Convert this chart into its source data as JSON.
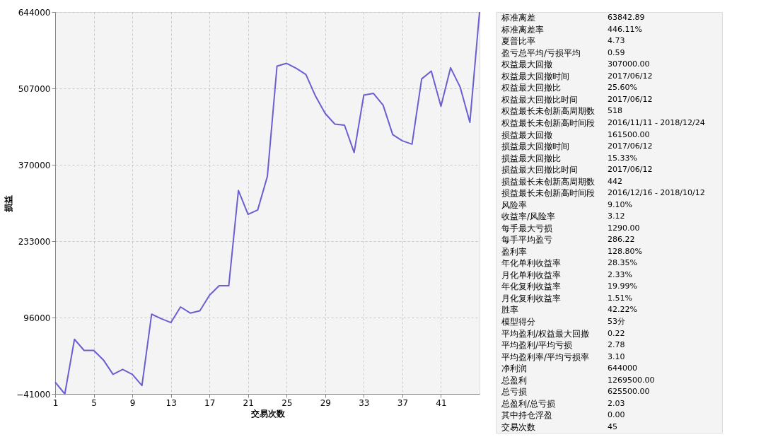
{
  "chart_data": [
    {
      "type": "line",
      "xlabel": "交易次数",
      "ylabel": "损益",
      "x": [
        1,
        2,
        3,
        4,
        5,
        6,
        7,
        8,
        9,
        10,
        11,
        12,
        13,
        14,
        15,
        16,
        17,
        18,
        19,
        20,
        21,
        22,
        23,
        24,
        25,
        26,
        27,
        28,
        29,
        30,
        31,
        32,
        33,
        34,
        35,
        36,
        37,
        38,
        39,
        40,
        41,
        42,
        43,
        44,
        45
      ],
      "series": [
        {
          "color": "#6a5fd0",
          "values": [
            -20000,
            -41000,
            57000,
            37000,
            37000,
            20000,
            -6000,
            3000,
            -6000,
            -26000,
            102000,
            94000,
            87000,
            115000,
            104000,
            108000,
            136000,
            153000,
            153000,
            324000,
            281000,
            289000,
            349000,
            547000,
            552000,
            543000,
            532000,
            493000,
            462000,
            443000,
            441000,
            392000,
            495000,
            498000,
            477000,
            424000,
            413000,
            407000,
            524000,
            538000,
            475000,
            544000,
            509000,
            446000,
            644000
          ]
        }
      ],
      "xlim": [
        1,
        45
      ],
      "xticks": [
        1,
        5,
        9,
        13,
        17,
        21,
        25,
        29,
        33,
        37,
        41
      ],
      "ylim": [
        -41000,
        644000
      ],
      "yticks": [
        -41000,
        96000,
        233000,
        370000,
        507000,
        644000
      ],
      "grid": true,
      "marker": "none",
      "line_style": "solid"
    },
    {
      "type": "other",
      "categories": [
        "标准离差",
        "标准离差率",
        "夏普比率",
        "盈亏总平均/亏损平均",
        "权益最大回撤",
        "权益最大回撤时间",
        "权益最大回撤比",
        "权益最大回撤比时间",
        "权益最长未创新高周期数",
        "权益最长未创新高时间段",
        "损益最大回撤",
        "损益最大回撤时间",
        "损益最大回撤比",
        "损益最大回撤比时间",
        "损益最长未创新高周期数",
        "损益最长未创新高时间段",
        "风险率",
        "收益率/风险率",
        "每手最大亏损",
        "每手平均盈亏",
        "盈利率",
        "年化单利收益率",
        "月化单利收益率",
        "年化复利收益率",
        "月化复利收益率",
        "胜率",
        "模型得分",
        "平均盈利/权益最大回撤",
        "平均盈利/平均亏损",
        "平均盈利率/平均亏损率",
        "净利润",
        "总盈利",
        "总亏损",
        "总盈利/总亏损",
        "其中持仓浮盈",
        "交易次数"
      ],
      "value_labels": [
        "63842.89",
        "446.11%",
        "4.73",
        "0.59",
        "307000.00",
        "2017/06/12",
        "25.60%",
        "2017/06/12",
        "518",
        "2016/11/11 - 2018/12/24",
        "161500.00",
        "2017/06/12",
        "15.33%",
        "2017/06/12",
        "442",
        "2016/12/16 - 2018/10/12",
        "9.10%",
        "3.12",
        "1290.00",
        "286.22",
        "128.80%",
        "28.35%",
        "2.33%",
        "19.99%",
        "1.51%",
        "42.22%",
        "53分",
        "0.22",
        "2.78",
        "3.10",
        "644000",
        "1269500.00",
        "625500.00",
        "2.03",
        "0.00",
        "45"
      ]
    }
  ]
}
